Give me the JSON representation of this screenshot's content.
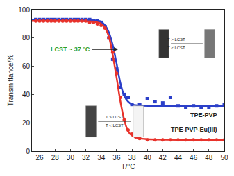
{
  "chart_data": {
    "type": "scatter",
    "x_label": "T/°C",
    "y_label": "Transmittance/%",
    "xlim": [
      25,
      50
    ],
    "xticks": [
      26,
      28,
      30,
      32,
      34,
      36,
      38,
      40,
      42,
      44,
      46,
      48,
      50
    ],
    "ylim": [
      0,
      100
    ],
    "yticks": [
      0,
      20,
      40,
      60,
      80,
      100
    ],
    "grid": false,
    "annotation": "LCST ~ 37 °C",
    "annotation_color": "#2ca02c",
    "insets": [
      {
        "top": "T > LCST",
        "bottom": "T < LCST"
      },
      {
        "top": "T > LCST",
        "bottom": "T < LCST"
      }
    ],
    "series": [
      {
        "name": "TPE-PVP",
        "color": "#2b3fc9",
        "marker": "square",
        "x": [
          25.5,
          26,
          26.5,
          27,
          27.5,
          28,
          28.5,
          29,
          29.5,
          30,
          30.5,
          31,
          31.5,
          32,
          32.5,
          33,
          33.5,
          34,
          34.5,
          35,
          35.5,
          36,
          36.5,
          37,
          37.5,
          38,
          39,
          40,
          41,
          42,
          43,
          44,
          45,
          46,
          47,
          48,
          49,
          50
        ],
        "values": [
          93,
          93,
          93,
          93,
          93,
          93,
          93,
          93,
          93,
          93,
          93,
          93,
          93,
          93,
          93,
          92,
          92,
          91,
          88,
          80,
          65,
          58,
          45,
          40,
          38,
          33,
          33,
          37,
          35,
          34,
          38,
          32,
          31,
          32,
          31,
          31,
          32,
          33
        ],
        "fit_x": [
          25,
          30,
          33,
          34,
          34.5,
          35,
          35.5,
          36,
          36.5,
          37,
          37.5,
          38,
          39,
          40,
          45,
          50
        ],
        "fit_values": [
          93,
          93,
          92.5,
          91.5,
          89,
          84,
          75,
          62,
          48,
          39,
          35,
          33,
          32.3,
          32,
          32,
          32
        ]
      },
      {
        "name": "TPE-PVP-Eu(III)",
        "color": "#e8322b",
        "marker": "circle",
        "x": [
          25.5,
          26,
          26.5,
          27,
          27.5,
          28,
          28.5,
          29,
          29.5,
          30,
          30.5,
          31,
          31.5,
          32,
          32.5,
          33,
          33.5,
          34,
          34.5,
          35,
          35.5,
          36,
          36.5,
          37,
          37.5,
          38,
          38.5,
          39,
          40,
          41,
          42,
          43,
          44,
          45,
          46,
          47,
          48,
          49,
          50
        ],
        "values": [
          92,
          92,
          92,
          92,
          92,
          92,
          92,
          92,
          92,
          92,
          92,
          92,
          92,
          92,
          91,
          91,
          90,
          89,
          87,
          80,
          70,
          55,
          38,
          22,
          15,
          12,
          10,
          9,
          8,
          8,
          8,
          8,
          8,
          8,
          8,
          8,
          8,
          8,
          8
        ],
        "fit_x": [
          25,
          30,
          33,
          34,
          34.5,
          35,
          35.5,
          36,
          36.5,
          37,
          37.5,
          38,
          39,
          40,
          45,
          50
        ],
        "fit_values": [
          92,
          92,
          91.5,
          90,
          87,
          81,
          68,
          52,
          35,
          22,
          14,
          11,
          9,
          8.5,
          8,
          8
        ]
      }
    ]
  }
}
